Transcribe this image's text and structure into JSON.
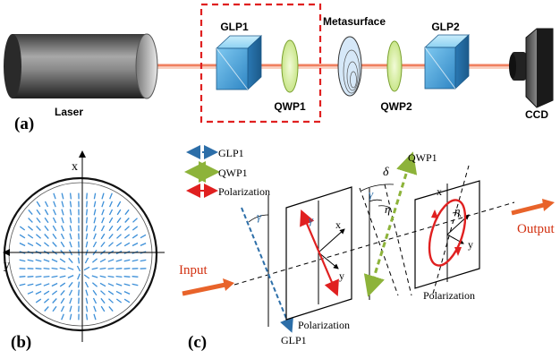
{
  "panel_a": {
    "panel_label": "(a)",
    "laser_label": "Laser",
    "glp1_label": "GLP1",
    "qwp1_label": "QWP1",
    "metasurface_label": "Metasurface",
    "qwp2_label": "QWP2",
    "glp2_label": "GLP2",
    "ccd_label": "CCD"
  },
  "panel_b": {
    "panel_label": "(b)",
    "x_axis": "x",
    "y_axis": "y"
  },
  "panel_c": {
    "panel_label": "(c)",
    "legend": [
      {
        "label": "GLP1",
        "color": "#2c6ea8"
      },
      {
        "label": "QWP1",
        "color": "#8db33a"
      },
      {
        "label": "Polarization",
        "color": "#e02020"
      }
    ],
    "input_label": "Input",
    "output_label": "Output",
    "glp1_axis_label": "GLP1",
    "qwp1_axis_label": "QWP1",
    "polarization_label_1": "Polarization",
    "polarization_label_2": "Polarization",
    "gamma": "γ",
    "eta": "η",
    "delta": "δ",
    "x": "x",
    "y": "y"
  },
  "colors": {
    "beam": "#f08060",
    "dashed_box": "#e02020",
    "red": "#e02020",
    "blue_dash": "#2c6ea8",
    "green_dash": "#8db33a",
    "arrow_orange": "#e8632a",
    "field_blue": "#3c8fd8"
  }
}
